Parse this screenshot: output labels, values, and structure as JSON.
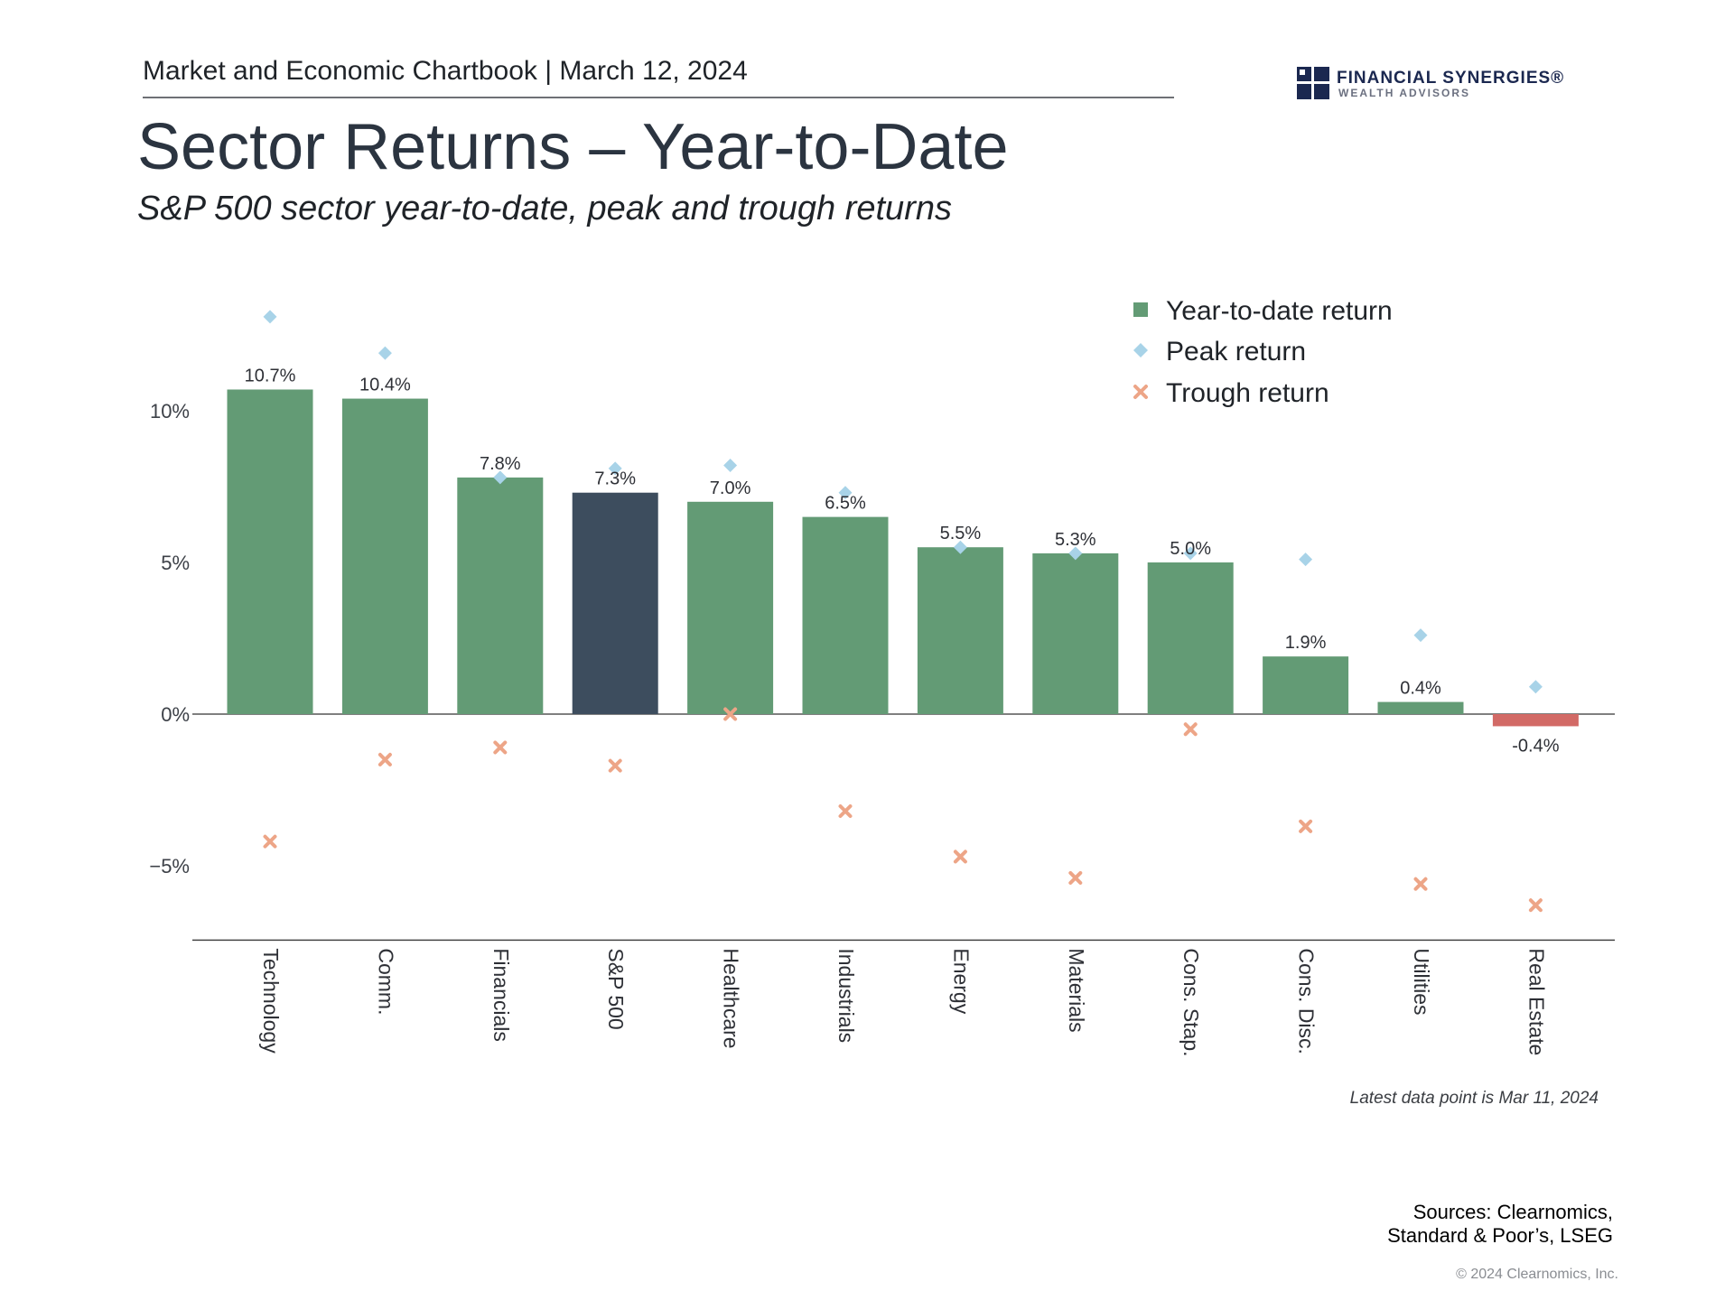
{
  "header": {
    "chartbook": "Market and Economic Chartbook | March 12, 2024",
    "logo_name": "FINANCIAL SYNERGIES®",
    "logo_sub": "WEALTH ADVISORS"
  },
  "colors": {
    "bar_positive": "#639b75",
    "bar_highlight": "#3d4d5e",
    "bar_negative": "#d26a66",
    "peak_marker": "#a8d3e8",
    "trough_marker": "#eda587"
  },
  "chart_data": {
    "type": "bar",
    "title": "Sector Returns – Year-to-Date",
    "subtitle": "S&P 500 sector year-to-date, peak and trough returns",
    "categories": [
      "Technology",
      "Comm.",
      "Financials",
      "S&P 500",
      "Healthcare",
      "Industrials",
      "Energy",
      "Materials",
      "Cons. Stap.",
      "Cons. Disc.",
      "Utilities",
      "Real Estate"
    ],
    "highlight_category": "S&P 500",
    "series": [
      {
        "name": "Year-to-date return",
        "marker": "bar",
        "values": [
          10.7,
          10.4,
          7.8,
          7.3,
          7.0,
          6.5,
          5.5,
          5.3,
          5.0,
          1.9,
          0.4,
          -0.4
        ],
        "labels": [
          "10.7%",
          "10.4%",
          "7.8%",
          "7.3%",
          "7.0%",
          "6.5%",
          "5.5%",
          "5.3%",
          "5.0%",
          "1.9%",
          "0.4%",
          "-0.4%"
        ]
      },
      {
        "name": "Peak return",
        "marker": "diamond",
        "values": [
          13.1,
          11.9,
          7.8,
          8.1,
          8.2,
          7.3,
          5.5,
          5.3,
          5.3,
          5.1,
          2.6,
          0.9
        ]
      },
      {
        "name": "Trough return",
        "marker": "x",
        "values": [
          -4.2,
          -1.5,
          -1.1,
          -1.7,
          0.0,
          -3.2,
          -4.7,
          -5.4,
          -0.5,
          -3.7,
          -5.6,
          -6.3
        ]
      }
    ],
    "y_ticks": [
      10,
      5,
      0,
      -5
    ],
    "y_tick_labels": [
      "10%",
      "5%",
      "0%",
      "−5%"
    ],
    "ylim": [
      -7.6,
      13.8
    ],
    "legend_position": "top-right",
    "grid": false
  },
  "footer": {
    "note": "Latest data point is Mar 11, 2024",
    "sources": "Sources: Clearnomics, Standard & Poor’s, LSEG",
    "copyright": "© 2024 Clearnomics, Inc."
  }
}
